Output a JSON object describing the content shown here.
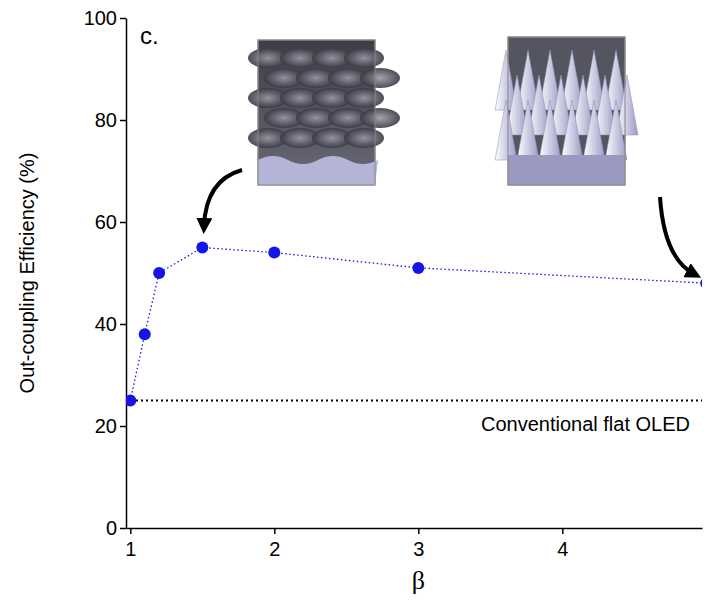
{
  "chart_data": {
    "type": "line",
    "panel_label": "c.",
    "x_label": "β",
    "y_label": "Out-coupling Efficiency (%)",
    "x": [
      1,
      1.1,
      1.2,
      1.5,
      2,
      3,
      5
    ],
    "values": [
      25,
      38,
      50,
      55,
      54,
      51,
      48
    ],
    "color": "#1515e6",
    "marker": "circle",
    "line_style": "dotted",
    "xlim": [
      0.97,
      4.97
    ],
    "xticks": [
      1,
      2,
      3,
      4
    ],
    "ylim": [
      0,
      100
    ],
    "yticks": [
      0,
      20,
      40,
      60,
      80,
      100
    ],
    "grid": false,
    "annotations": [
      {
        "text": "Conventional flat OLED",
        "y": 25
      }
    ]
  }
}
